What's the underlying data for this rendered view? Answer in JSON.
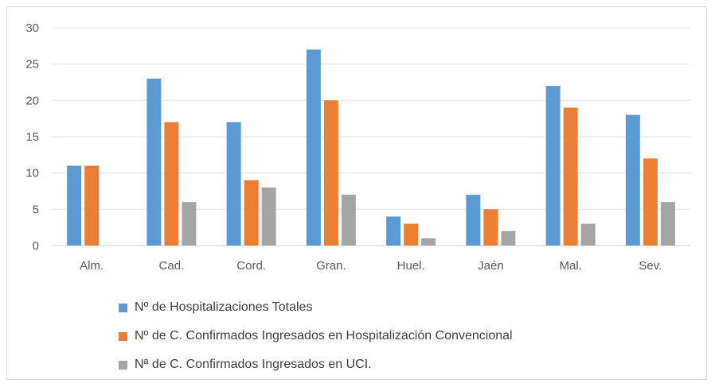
{
  "chart_data": {
    "type": "bar",
    "categories": [
      "Alm.",
      "Cad.",
      "Cord.",
      "Gran.",
      "Huel.",
      "Jaén",
      "Mal.",
      "Sev."
    ],
    "series": [
      {
        "name": "Nº de Hospitalizaciones Totales",
        "color": "#5b9bd5",
        "values": [
          11,
          23,
          17,
          27,
          4,
          7,
          22,
          18
        ]
      },
      {
        "name": "Nº de C. Confirmados Ingresados en Hospitalización Convencional",
        "color": "#ed7d31",
        "values": [
          11,
          17,
          9,
          20,
          3,
          5,
          19,
          12
        ]
      },
      {
        "name": "Nª de C. Confirmados Ingresados en UCI.",
        "color": "#a5a5a5",
        "values": [
          0,
          6,
          8,
          7,
          1,
          2,
          3,
          6
        ]
      }
    ],
    "yticks": [
      0,
      5,
      10,
      15,
      20,
      25,
      30
    ],
    "ylim": [
      0,
      30
    ],
    "grid": true,
    "legend_position": "bottom"
  }
}
